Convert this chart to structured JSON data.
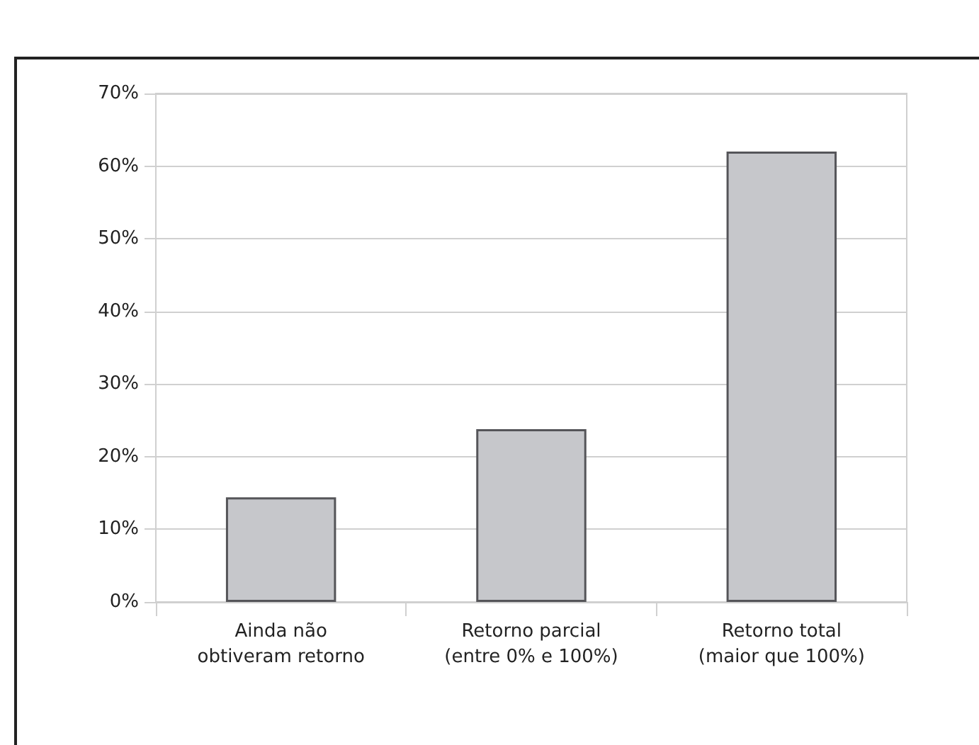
{
  "chart_data": {
    "type": "bar",
    "categories": [
      "Ainda não\nobtiveram retorno",
      "Retorno parcial\n(entre 0% e 100%)",
      "Retorno total\n(maior que 100%)"
    ],
    "values": [
      14.4,
      23.8,
      62.0
    ],
    "color": "#c6c7cb",
    "ylim": [
      0,
      70
    ],
    "yticks": [
      {
        "value": 0,
        "label": "0%"
      },
      {
        "value": 10,
        "label": "10%"
      },
      {
        "value": 20,
        "label": "20%"
      },
      {
        "value": 30,
        "label": "30%"
      },
      {
        "value": 40,
        "label": "40%"
      },
      {
        "value": 50,
        "label": "50%"
      },
      {
        "value": 60,
        "label": "60%"
      },
      {
        "value": 70,
        "label": "70%"
      }
    ],
    "grid": "y"
  }
}
